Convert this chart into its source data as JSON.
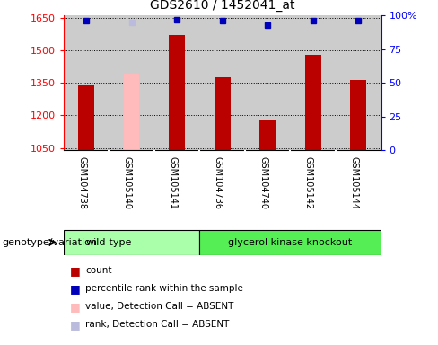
{
  "title": "GDS2610 / 1452041_at",
  "samples": [
    "GSM104738",
    "GSM105140",
    "GSM105141",
    "GSM104736",
    "GSM104740",
    "GSM105142",
    "GSM105144"
  ],
  "count_values": [
    1340,
    1390,
    1570,
    1375,
    1175,
    1480,
    1365
  ],
  "count_absent": [
    false,
    true,
    false,
    false,
    false,
    false,
    false
  ],
  "rank_values": [
    96,
    95,
    97,
    96,
    93,
    96,
    96
  ],
  "rank_absent": [
    false,
    true,
    false,
    false,
    false,
    false,
    false
  ],
  "ylim_left": [
    1040,
    1660
  ],
  "ylim_right": [
    0,
    100
  ],
  "yticks_left": [
    1050,
    1200,
    1350,
    1500,
    1650
  ],
  "yticks_right": [
    0,
    25,
    50,
    75,
    100
  ],
  "wt_count": 3,
  "bar_color_normal": "#bb0000",
  "bar_color_absent": "#ffbbbb",
  "rank_color_normal": "#0000bb",
  "rank_color_absent": "#bbbbdd",
  "col_bg_color": "#cccccc",
  "wt_color": "#aaffaa",
  "gko_color": "#55ee55",
  "fig_bg": "#ffffff",
  "legend_items": [
    {
      "label": "count",
      "color": "#bb0000"
    },
    {
      "label": "percentile rank within the sample",
      "color": "#0000bb"
    },
    {
      "label": "value, Detection Call = ABSENT",
      "color": "#ffbbbb"
    },
    {
      "label": "rank, Detection Call = ABSENT",
      "color": "#bbbbdd"
    }
  ]
}
